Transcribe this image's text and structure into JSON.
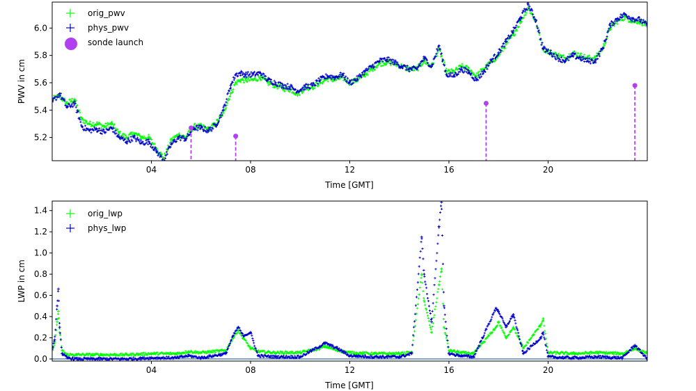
{
  "chart_data": [
    {
      "type": "scatter",
      "xlabel": "Time [GMT]",
      "ylabel": "PWV in cm",
      "xlim": [
        0,
        24
      ],
      "ylim": [
        5.03,
        6.19
      ],
      "xticks": [
        4,
        8,
        12,
        16,
        20
      ],
      "xtick_labels": [
        "04",
        "08",
        "12",
        "16",
        "20"
      ],
      "yticks": [
        5.2,
        5.4,
        5.6,
        5.8,
        6.0
      ],
      "ytick_labels": [
        "5.2",
        "5.4",
        "5.6",
        "5.8",
        "6.0"
      ],
      "legend_position": "top-left",
      "colors": {
        "orig": "#00ff00",
        "phys": "#0000cc",
        "sonde": "#b040f0"
      },
      "legend": [
        "orig_pwv",
        "phys_pwv",
        "sonde launch"
      ],
      "series": [
        {
          "name": "orig_pwv",
          "x": [
            0.0,
            0.3,
            0.6,
            0.9,
            1.2,
            1.5,
            1.8,
            2.1,
            2.4,
            2.7,
            3.0,
            3.3,
            3.6,
            3.9,
            4.2,
            4.5,
            4.8,
            5.1,
            5.4,
            5.7,
            6.0,
            6.3,
            6.6,
            6.9,
            7.2,
            7.4,
            7.6,
            7.8,
            8.1,
            8.4,
            8.7,
            9.0,
            9.3,
            9.6,
            9.9,
            10.2,
            10.5,
            10.8,
            11.1,
            11.4,
            11.7,
            12.0,
            12.3,
            12.6,
            12.9,
            13.2,
            13.5,
            13.8,
            14.1,
            14.4,
            14.7,
            15.0,
            15.3,
            15.6,
            15.9,
            16.2,
            16.5,
            16.8,
            17.1,
            17.4,
            17.7,
            18.0,
            18.3,
            18.6,
            18.9,
            19.2,
            19.5,
            19.8,
            20.1,
            20.4,
            20.7,
            21.0,
            21.3,
            21.6,
            21.9,
            22.2,
            22.5,
            22.8,
            23.1,
            23.4,
            23.7,
            24.0
          ],
          "y": [
            5.48,
            5.5,
            5.45,
            5.48,
            5.33,
            5.3,
            5.3,
            5.28,
            5.3,
            5.23,
            5.2,
            5.23,
            5.2,
            5.2,
            5.12,
            5.05,
            5.18,
            5.22,
            5.2,
            5.28,
            5.28,
            5.26,
            5.3,
            5.38,
            5.52,
            5.6,
            5.62,
            5.62,
            5.62,
            5.64,
            5.6,
            5.58,
            5.56,
            5.55,
            5.52,
            5.56,
            5.57,
            5.6,
            5.63,
            5.62,
            5.64,
            5.6,
            5.62,
            5.66,
            5.7,
            5.74,
            5.75,
            5.74,
            5.72,
            5.7,
            5.7,
            5.76,
            5.72,
            5.85,
            5.68,
            5.68,
            5.72,
            5.7,
            5.65,
            5.7,
            5.75,
            5.8,
            5.88,
            5.95,
            6.05,
            6.15,
            6.05,
            5.85,
            5.82,
            5.8,
            5.78,
            5.82,
            5.8,
            5.78,
            5.78,
            5.85,
            6.0,
            6.05,
            6.08,
            6.05,
            6.05,
            6.02
          ]
        },
        {
          "name": "phys_pwv",
          "x": [
            0.0,
            0.3,
            0.6,
            0.9,
            1.2,
            1.5,
            1.8,
            2.1,
            2.4,
            2.7,
            3.0,
            3.3,
            3.6,
            3.9,
            4.2,
            4.5,
            4.8,
            5.1,
            5.4,
            5.7,
            6.0,
            6.3,
            6.6,
            6.9,
            7.2,
            7.4,
            7.6,
            7.8,
            8.1,
            8.4,
            8.7,
            9.0,
            9.3,
            9.6,
            9.9,
            10.2,
            10.5,
            10.8,
            11.1,
            11.4,
            11.7,
            12.0,
            12.3,
            12.6,
            12.9,
            13.2,
            13.5,
            13.8,
            14.1,
            14.4,
            14.7,
            15.0,
            15.3,
            15.6,
            15.9,
            16.2,
            16.5,
            16.8,
            17.1,
            17.4,
            17.7,
            18.0,
            18.3,
            18.6,
            18.9,
            19.2,
            19.5,
            19.8,
            20.1,
            20.4,
            20.7,
            21.0,
            21.3,
            21.6,
            21.9,
            22.2,
            22.5,
            22.8,
            23.1,
            23.4,
            23.7,
            24.0
          ],
          "y": [
            5.46,
            5.52,
            5.42,
            5.45,
            5.28,
            5.25,
            5.26,
            5.24,
            5.27,
            5.2,
            5.17,
            5.2,
            5.16,
            5.17,
            5.1,
            5.03,
            5.15,
            5.2,
            5.19,
            5.27,
            5.27,
            5.25,
            5.29,
            5.4,
            5.58,
            5.66,
            5.67,
            5.66,
            5.66,
            5.67,
            5.62,
            5.6,
            5.58,
            5.57,
            5.54,
            5.57,
            5.58,
            5.62,
            5.65,
            5.64,
            5.66,
            5.6,
            5.63,
            5.68,
            5.72,
            5.76,
            5.77,
            5.75,
            5.72,
            5.7,
            5.7,
            5.78,
            5.72,
            5.87,
            5.66,
            5.65,
            5.7,
            5.68,
            5.62,
            5.68,
            5.76,
            5.82,
            5.9,
            5.98,
            6.08,
            6.17,
            6.06,
            5.85,
            5.82,
            5.78,
            5.76,
            5.8,
            5.78,
            5.76,
            5.76,
            5.85,
            6.02,
            6.07,
            6.1,
            6.07,
            6.06,
            6.02
          ]
        }
      ],
      "sonde_launch": {
        "x": [
          5.6,
          7.4,
          17.5,
          23.5
        ],
        "y": [
          5.27,
          5.21,
          5.45,
          5.58
        ]
      }
    },
    {
      "type": "scatter",
      "xlabel": "Time [GMT]",
      "ylabel": "LWP in cm",
      "xlim": [
        0,
        24
      ],
      "ylim": [
        -0.02,
        1.49
      ],
      "xticks": [
        4,
        8,
        12,
        16,
        20
      ],
      "xtick_labels": [
        "04",
        "08",
        "12",
        "16",
        "20"
      ],
      "yticks": [
        0.0,
        0.2,
        0.4,
        0.6,
        0.8,
        1.0,
        1.2,
        1.4
      ],
      "ytick_labels": [
        "0.0",
        "0.2",
        "0.4",
        "0.6",
        "0.8",
        "1.0",
        "1.2",
        "1.4"
      ],
      "legend_position": "top-left",
      "colors": {
        "orig": "#00ff00",
        "phys": "#0000cc",
        "zero_line": "#1f5fa0"
      },
      "legend": [
        "orig_lwp",
        "phys_lwp"
      ],
      "series": [
        {
          "name": "orig_lwp",
          "x": [
            0.0,
            0.1,
            0.2,
            0.25,
            0.3,
            0.4,
            0.6,
            1.0,
            2.0,
            3.0,
            4.0,
            5.0,
            5.5,
            6.0,
            7.0,
            7.3,
            7.5,
            7.7,
            8.0,
            8.3,
            9.0,
            10.0,
            10.8,
            11.0,
            11.5,
            12.0,
            13.0,
            14.0,
            14.5,
            14.9,
            15.0,
            15.3,
            15.6,
            15.7,
            15.8,
            16.0,
            16.5,
            17.0,
            17.9,
            18.0,
            18.3,
            18.6,
            19.0,
            19.7,
            19.8,
            20.0,
            21.0,
            22.0,
            23.0,
            23.5,
            24.0
          ],
          "y": [
            0.08,
            0.15,
            0.35,
            0.45,
            0.25,
            0.08,
            0.04,
            0.04,
            0.04,
            0.04,
            0.05,
            0.05,
            0.07,
            0.06,
            0.08,
            0.2,
            0.27,
            0.2,
            0.1,
            0.07,
            0.06,
            0.06,
            0.1,
            0.12,
            0.08,
            0.06,
            0.05,
            0.05,
            0.06,
            0.8,
            0.55,
            0.25,
            0.7,
            0.85,
            0.3,
            0.08,
            0.06,
            0.05,
            0.3,
            0.35,
            0.2,
            0.3,
            0.1,
            0.32,
            0.38,
            0.06,
            0.05,
            0.06,
            0.05,
            0.1,
            0.05
          ]
        },
        {
          "name": "phys_lwp",
          "x": [
            0.0,
            0.1,
            0.2,
            0.25,
            0.3,
            0.4,
            0.6,
            1.0,
            2.0,
            3.0,
            4.0,
            5.0,
            5.5,
            6.0,
            7.0,
            7.3,
            7.5,
            7.7,
            8.0,
            8.3,
            9.0,
            10.0,
            10.8,
            11.0,
            11.5,
            12.0,
            13.0,
            14.0,
            14.5,
            14.9,
            15.0,
            15.3,
            15.6,
            15.7,
            15.8,
            16.0,
            16.5,
            17.0,
            17.9,
            18.0,
            18.3,
            18.6,
            19.0,
            19.7,
            19.8,
            20.0,
            21.0,
            22.0,
            23.0,
            23.5,
            24.0
          ],
          "y": [
            0.1,
            0.18,
            0.5,
            0.66,
            0.3,
            0.05,
            0.01,
            0.0,
            0.0,
            0.0,
            0.01,
            0.01,
            0.03,
            0.01,
            0.05,
            0.22,
            0.3,
            0.22,
            0.25,
            0.03,
            0.02,
            0.02,
            0.12,
            0.15,
            0.1,
            0.03,
            0.02,
            0.02,
            0.05,
            1.15,
            0.8,
            0.35,
            1.25,
            1.48,
            0.5,
            0.05,
            0.03,
            0.02,
            0.48,
            0.45,
            0.3,
            0.42,
            0.05,
            0.2,
            0.25,
            0.02,
            0.01,
            0.02,
            0.01,
            0.13,
            0.0
          ]
        }
      ],
      "zero_line_y": 0.0
    }
  ]
}
